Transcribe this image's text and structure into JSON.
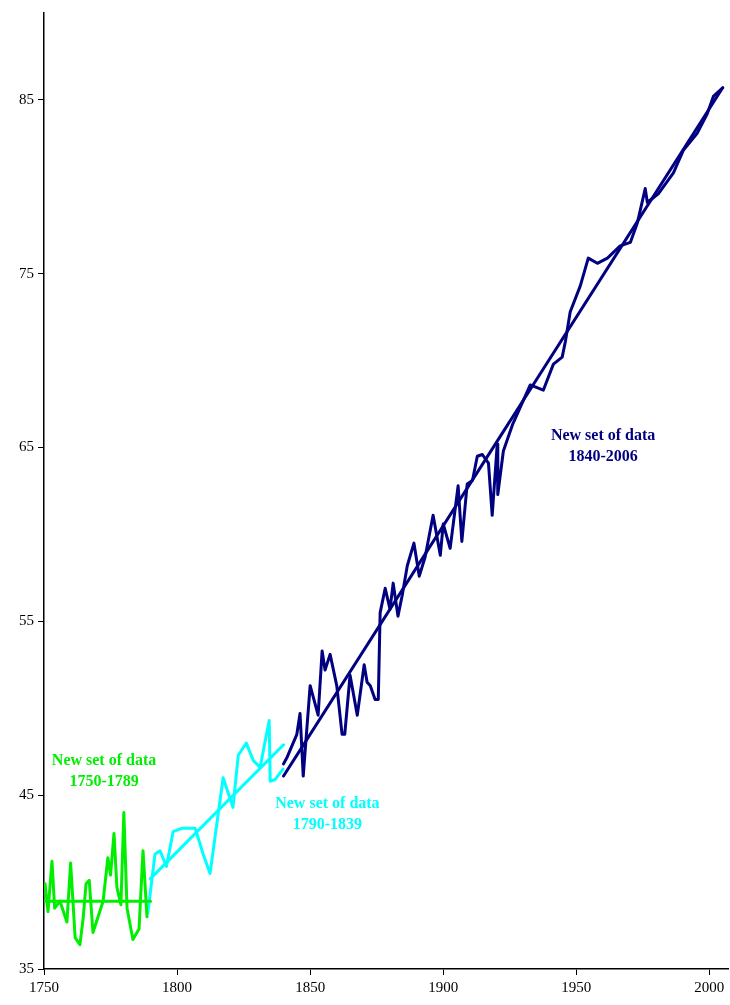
{
  "chart_data": {
    "type": "line",
    "xlim": [
      1750,
      2007
    ],
    "ylim": [
      35,
      90
    ],
    "xticks": [
      1750,
      1800,
      1850,
      1900,
      1950,
      2000
    ],
    "yticks": [
      35,
      45,
      55,
      65,
      75,
      85
    ],
    "grid": false,
    "legend": false,
    "marker": "none",
    "line_style": "solid",
    "series": [
      {
        "name": "New set of data 1750-1789",
        "color": "#00ee00",
        "x": [
          1750.4,
          1751.5,
          1753,
          1754,
          1756,
          1758.6,
          1760,
          1761.7,
          1763.5,
          1764.7,
          1765.8,
          1767,
          1768.4,
          1772.2,
          1774,
          1775,
          1776.3,
          1777.4,
          1778.9,
          1780,
          1781.2,
          1783.4,
          1785.7,
          1787.2,
          1788.7
        ],
        "values": [
          39.9,
          38.3,
          41.2,
          38.5,
          38.9,
          37.7,
          41.1,
          36.8,
          36.4,
          37.9,
          39.9,
          40.1,
          37.1,
          38.9,
          41.4,
          40.4,
          42.8,
          39.7,
          38.7,
          44.0,
          38.5,
          36.7,
          37.3,
          41.8,
          38.0
        ]
      },
      {
        "type": "line",
        "color": "#00ee00",
        "x": [
          1750,
          1790
        ],
        "values": [
          38.9,
          38.9
        ]
      },
      {
        "name": "New set of data 1790-1839",
        "color": "#00ffff",
        "x": [
          1789,
          1791.7,
          1793.6,
          1796,
          1798.5,
          1802,
          1806.8,
          1809.8,
          1812.4,
          1817.3,
          1821,
          1823,
          1826,
          1828.6,
          1831.2,
          1834.6,
          1835,
          1836.8,
          1839.8
        ],
        "values": [
          38.2,
          41.6,
          41.8,
          40.9,
          42.9,
          43.1,
          43.1,
          41.6,
          40.5,
          46.0,
          44.3,
          47.3,
          48.0,
          47.0,
          46.6,
          49.3,
          45.8,
          45.9,
          46.5
        ]
      },
      {
        "type": "line",
        "color": "#00ffff",
        "x": [
          1790,
          1840
        ],
        "values": [
          40.2,
          47.9
        ]
      },
      {
        "name": "New set of data 1840-2006",
        "color": "#000080",
        "x": [
          1840,
          1841.4,
          1845,
          1846.2,
          1847.4,
          1850,
          1853,
          1854.5,
          1855.6,
          1857.5,
          1860,
          1862,
          1863,
          1865,
          1867.7,
          1870.3,
          1871.4,
          1872.6,
          1874.4,
          1875.6,
          1876.3,
          1878.2,
          1880,
          1881.2,
          1883,
          1884.6,
          1886.5,
          1889,
          1891,
          1893.2,
          1896.2,
          1898.9,
          1900,
          1902.6,
          1905.6,
          1907,
          1909,
          1911,
          1912.8,
          1914.7,
          1917,
          1918.4,
          1920.3,
          1920.5,
          1922.6,
          1926,
          1932.7,
          1937.6,
          1941.4,
          1944.7,
          1945.9,
          1947.7,
          1951.5,
          1954.5,
          1957.9,
          1961.7,
          1966.5,
          1970.3,
          1972.9,
          1975.9,
          1976.7,
          1980.8,
          1986.5,
          1990.2,
          1995.5,
          1999.2,
          2001.5,
          2005
        ],
        "values": [
          46.8,
          47.2,
          48.5,
          49.7,
          46.1,
          51.3,
          49.6,
          53.3,
          52.2,
          53.1,
          51.3,
          48.5,
          48.5,
          51.9,
          49.6,
          52.5,
          51.5,
          51.3,
          50.5,
          50.5,
          55.5,
          56.9,
          55.7,
          57.2,
          55.3,
          56.5,
          58.2,
          59.5,
          57.6,
          58.7,
          61.1,
          58.8,
          60.6,
          59.2,
          62.8,
          59.6,
          62.9,
          63.1,
          64.5,
          64.6,
          64.1,
          61.1,
          65.2,
          62.3,
          64.8,
          66.3,
          68.6,
          68.3,
          69.8,
          70.2,
          71.1,
          72.8,
          74.3,
          75.9,
          75.6,
          75.9,
          76.6,
          76.8,
          77.9,
          79.9,
          79.1,
          79.6,
          80.8,
          82.1,
          83.1,
          84.2,
          85.2,
          85.7
        ]
      },
      {
        "type": "line",
        "color": "#000080",
        "x": [
          1840,
          2005
        ],
        "values": [
          46.1,
          85.7
        ]
      }
    ]
  }
}
